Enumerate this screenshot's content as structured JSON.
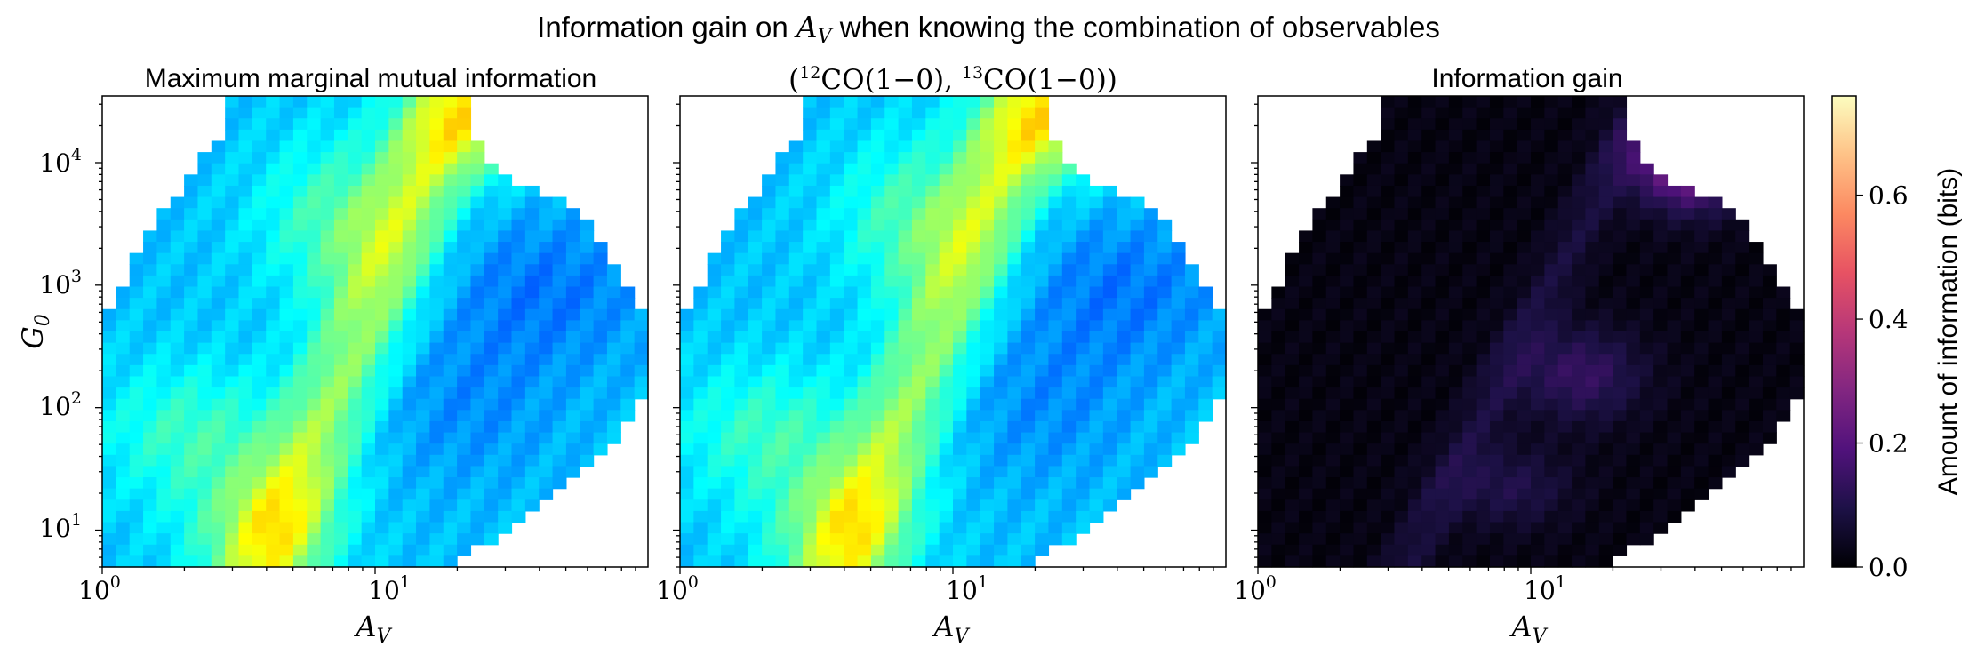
{
  "figure": {
    "suptitle": "Information gain on A_V when knowing the combination of observables"
  },
  "colors": {
    "jet_scale": [
      "#00007f",
      "#0000ff",
      "#007fff",
      "#00ffff",
      "#7fff7f",
      "#ffff00",
      "#ff7f00"
    ],
    "magma_scale": [
      "#000004",
      "#1d1147",
      "#51127c",
      "#822681",
      "#b73779",
      "#e75263",
      "#fc8961",
      "#fec287",
      "#fcfdbf"
    ]
  },
  "chart_data": [
    {
      "type": "heatmap",
      "title": "Maximum marginal mutual information",
      "xlabel": "A_V",
      "ylabel": "G_0",
      "xscale": "log",
      "yscale": "log",
      "xlim": [
        1,
        100
      ],
      "ylim": [
        5,
        35000
      ],
      "xticks": [
        "10^0",
        "10^1"
      ],
      "yticks": [
        "10^1",
        "10^2",
        "10^3",
        "10^4"
      ],
      "colormap": "jet",
      "value_range": [
        0,
        0.75
      ]
    },
    {
      "type": "heatmap",
      "title": "(12CO(1-0), 13CO(1-0))",
      "xlabel": "A_V",
      "xscale": "log",
      "yscale": "log",
      "xlim": [
        1,
        100
      ],
      "ylim": [
        5,
        35000
      ],
      "xticks": [
        "10^0",
        "10^1"
      ],
      "colormap": "jet",
      "value_range": [
        0,
        0.75
      ]
    },
    {
      "type": "heatmap",
      "title": "Information gain",
      "xlabel": "A_V",
      "xscale": "log",
      "yscale": "log",
      "xlim": [
        1,
        100
      ],
      "ylim": [
        5,
        35000
      ],
      "xticks": [
        "10^0",
        "10^1"
      ],
      "colormap": "magma",
      "value_range": [
        0,
        0.75
      ]
    },
    {
      "type": "colorbar",
      "label": "Amount of information (bits)",
      "ticks": [
        "0.0",
        "0.2",
        "0.4",
        "0.6"
      ],
      "range": [
        0,
        0.76
      ],
      "colormap": "magma"
    }
  ]
}
